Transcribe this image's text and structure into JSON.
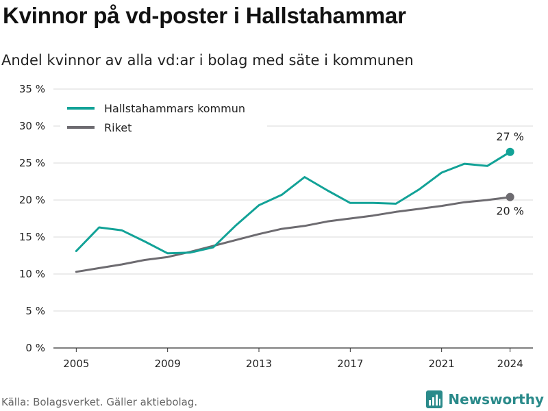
{
  "title": "Kvinnor på vd-poster i Hallstahammar",
  "subtitle": "Andel kvinnor av alla vd:ar i bolag med säte i kommunen",
  "source": "Källa: Bolagsverket. Gäller aktiebolag.",
  "brand": {
    "name": "Newsworthy",
    "icon": "newsworthy-logo-icon",
    "color": "#2a8a8a"
  },
  "chart_data": {
    "type": "line",
    "xlabel": "",
    "ylabel": "",
    "xlim": [
      2004,
      2025
    ],
    "ylim": [
      0,
      35
    ],
    "x_ticks": [
      2005,
      2009,
      2013,
      2017,
      2021,
      2024
    ],
    "y_ticks": [
      0,
      5,
      10,
      15,
      20,
      25,
      30,
      35
    ],
    "y_tick_labels": [
      "0 %",
      "5 %",
      "10 %",
      "15 %",
      "20 %",
      "25 %",
      "30 %",
      "35 %"
    ],
    "grid": true,
    "legend_position": "top-left",
    "x": [
      2005,
      2006,
      2007,
      2008,
      2009,
      2010,
      2011,
      2012,
      2013,
      2014,
      2015,
      2016,
      2017,
      2018,
      2019,
      2020,
      2021,
      2022,
      2023,
      2024
    ],
    "series": [
      {
        "name": "Hallstahammars kommun",
        "color": "#12a297",
        "values": [
          13.1,
          16.3,
          15.9,
          14.4,
          12.8,
          12.9,
          13.6,
          16.6,
          19.3,
          20.7,
          23.1,
          21.3,
          19.6,
          19.6,
          19.5,
          21.4,
          23.7,
          24.9,
          24.6,
          26.5
        ],
        "end_label": "27 %"
      },
      {
        "name": "Riket",
        "color": "#6d6b70",
        "values": [
          10.3,
          10.8,
          11.3,
          11.9,
          12.3,
          13.0,
          13.8,
          14.6,
          15.4,
          16.1,
          16.5,
          17.1,
          17.5,
          17.9,
          18.4,
          18.8,
          19.2,
          19.7,
          20.0,
          20.4
        ],
        "end_label": "20 %"
      }
    ]
  }
}
